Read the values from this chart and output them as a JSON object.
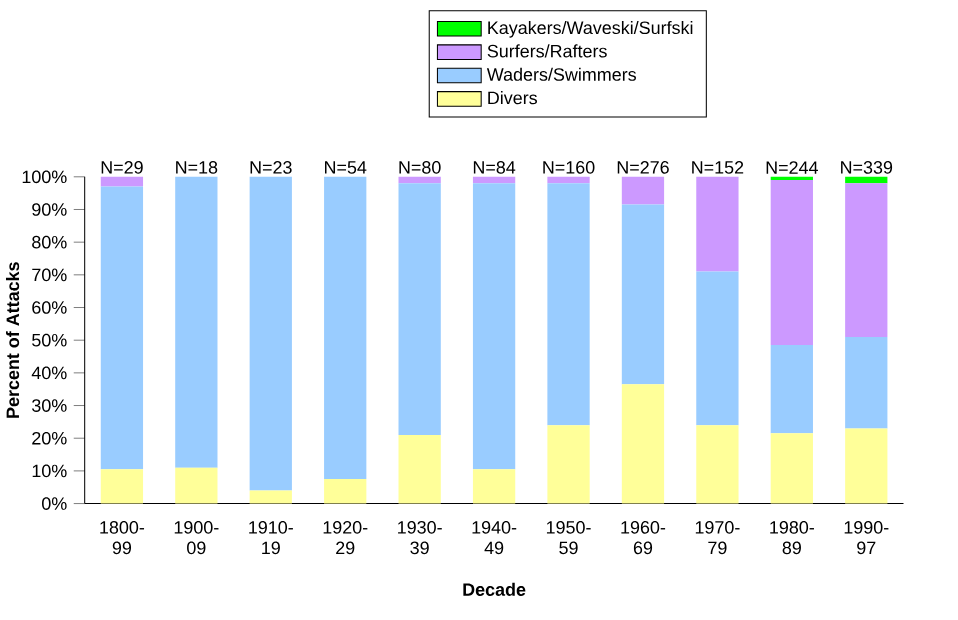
{
  "chart_data": {
    "type": "bar",
    "stacked": true,
    "xlabel": "Decade",
    "ylabel": "Percent of Attacks",
    "categories": [
      "1800-99",
      "1900-09",
      "1910-19",
      "1920-29",
      "1930-39",
      "1940-49",
      "1950-59",
      "1960-69",
      "1970-79",
      "1980-89",
      "1990-97"
    ],
    "series": [
      {
        "name": "Divers",
        "color": "#ffff99",
        "values": [
          10.5,
          11,
          4,
          7.5,
          21,
          10.5,
          24,
          36.5,
          24,
          21.5,
          23
        ]
      },
      {
        "name": "Waders/Swimmers",
        "color": "#99ccff",
        "values": [
          86.5,
          89,
          96,
          92.5,
          77,
          87.5,
          74,
          55,
          47,
          27,
          28
        ]
      },
      {
        "name": "Surfers/Rafters",
        "color": "#cc99ff",
        "values": [
          3,
          0,
          0,
          0,
          2,
          2,
          2,
          8.5,
          29,
          50.5,
          47
        ]
      },
      {
        "name": "Kayakers/Waveski/Surfski",
        "color": "#00ff00",
        "values": [
          0,
          0,
          0,
          0,
          0,
          0,
          0,
          0,
          0,
          1,
          2
        ]
      }
    ],
    "ylim": [
      0,
      100
    ],
    "yticks": [
      {
        "value": 0,
        "label": "0%"
      },
      {
        "value": 10,
        "label": "10%"
      },
      {
        "value": 20,
        "label": "20%"
      },
      {
        "value": 30,
        "label": "30%"
      },
      {
        "value": 40,
        "label": "40%"
      },
      {
        "value": 50,
        "label": "50%"
      },
      {
        "value": 60,
        "label": "60%"
      },
      {
        "value": 70,
        "label": "70%"
      },
      {
        "value": 80,
        "label": "80%"
      },
      {
        "value": 90,
        "label": "90%"
      },
      {
        "value": 100,
        "label": "100%"
      }
    ],
    "annotations": [
      {
        "text": "N=29",
        "x": "1800-99",
        "y": 100
      },
      {
        "text": "N=18",
        "x": "1900-09",
        "y": 100
      },
      {
        "text": "N=23",
        "x": "1910-19",
        "y": 100
      },
      {
        "text": "N=54",
        "x": "1920-29",
        "y": 100
      },
      {
        "text": "N=80",
        "x": "1930-39",
        "y": 100
      },
      {
        "text": "N=84",
        "x": "1940-49",
        "y": 100
      },
      {
        "text": "N=160",
        "x": "1950-59",
        "y": 100
      },
      {
        "text": "N=276",
        "x": "1960-69",
        "y": 100
      },
      {
        "text": "N=152",
        "x": "1970-79",
        "y": 100
      },
      {
        "text": "N=244",
        "x": "1980-89",
        "y": 100
      },
      {
        "text": "N=339",
        "x": "1990-97",
        "y": 100
      }
    ],
    "legend": "top",
    "grid": false
  }
}
